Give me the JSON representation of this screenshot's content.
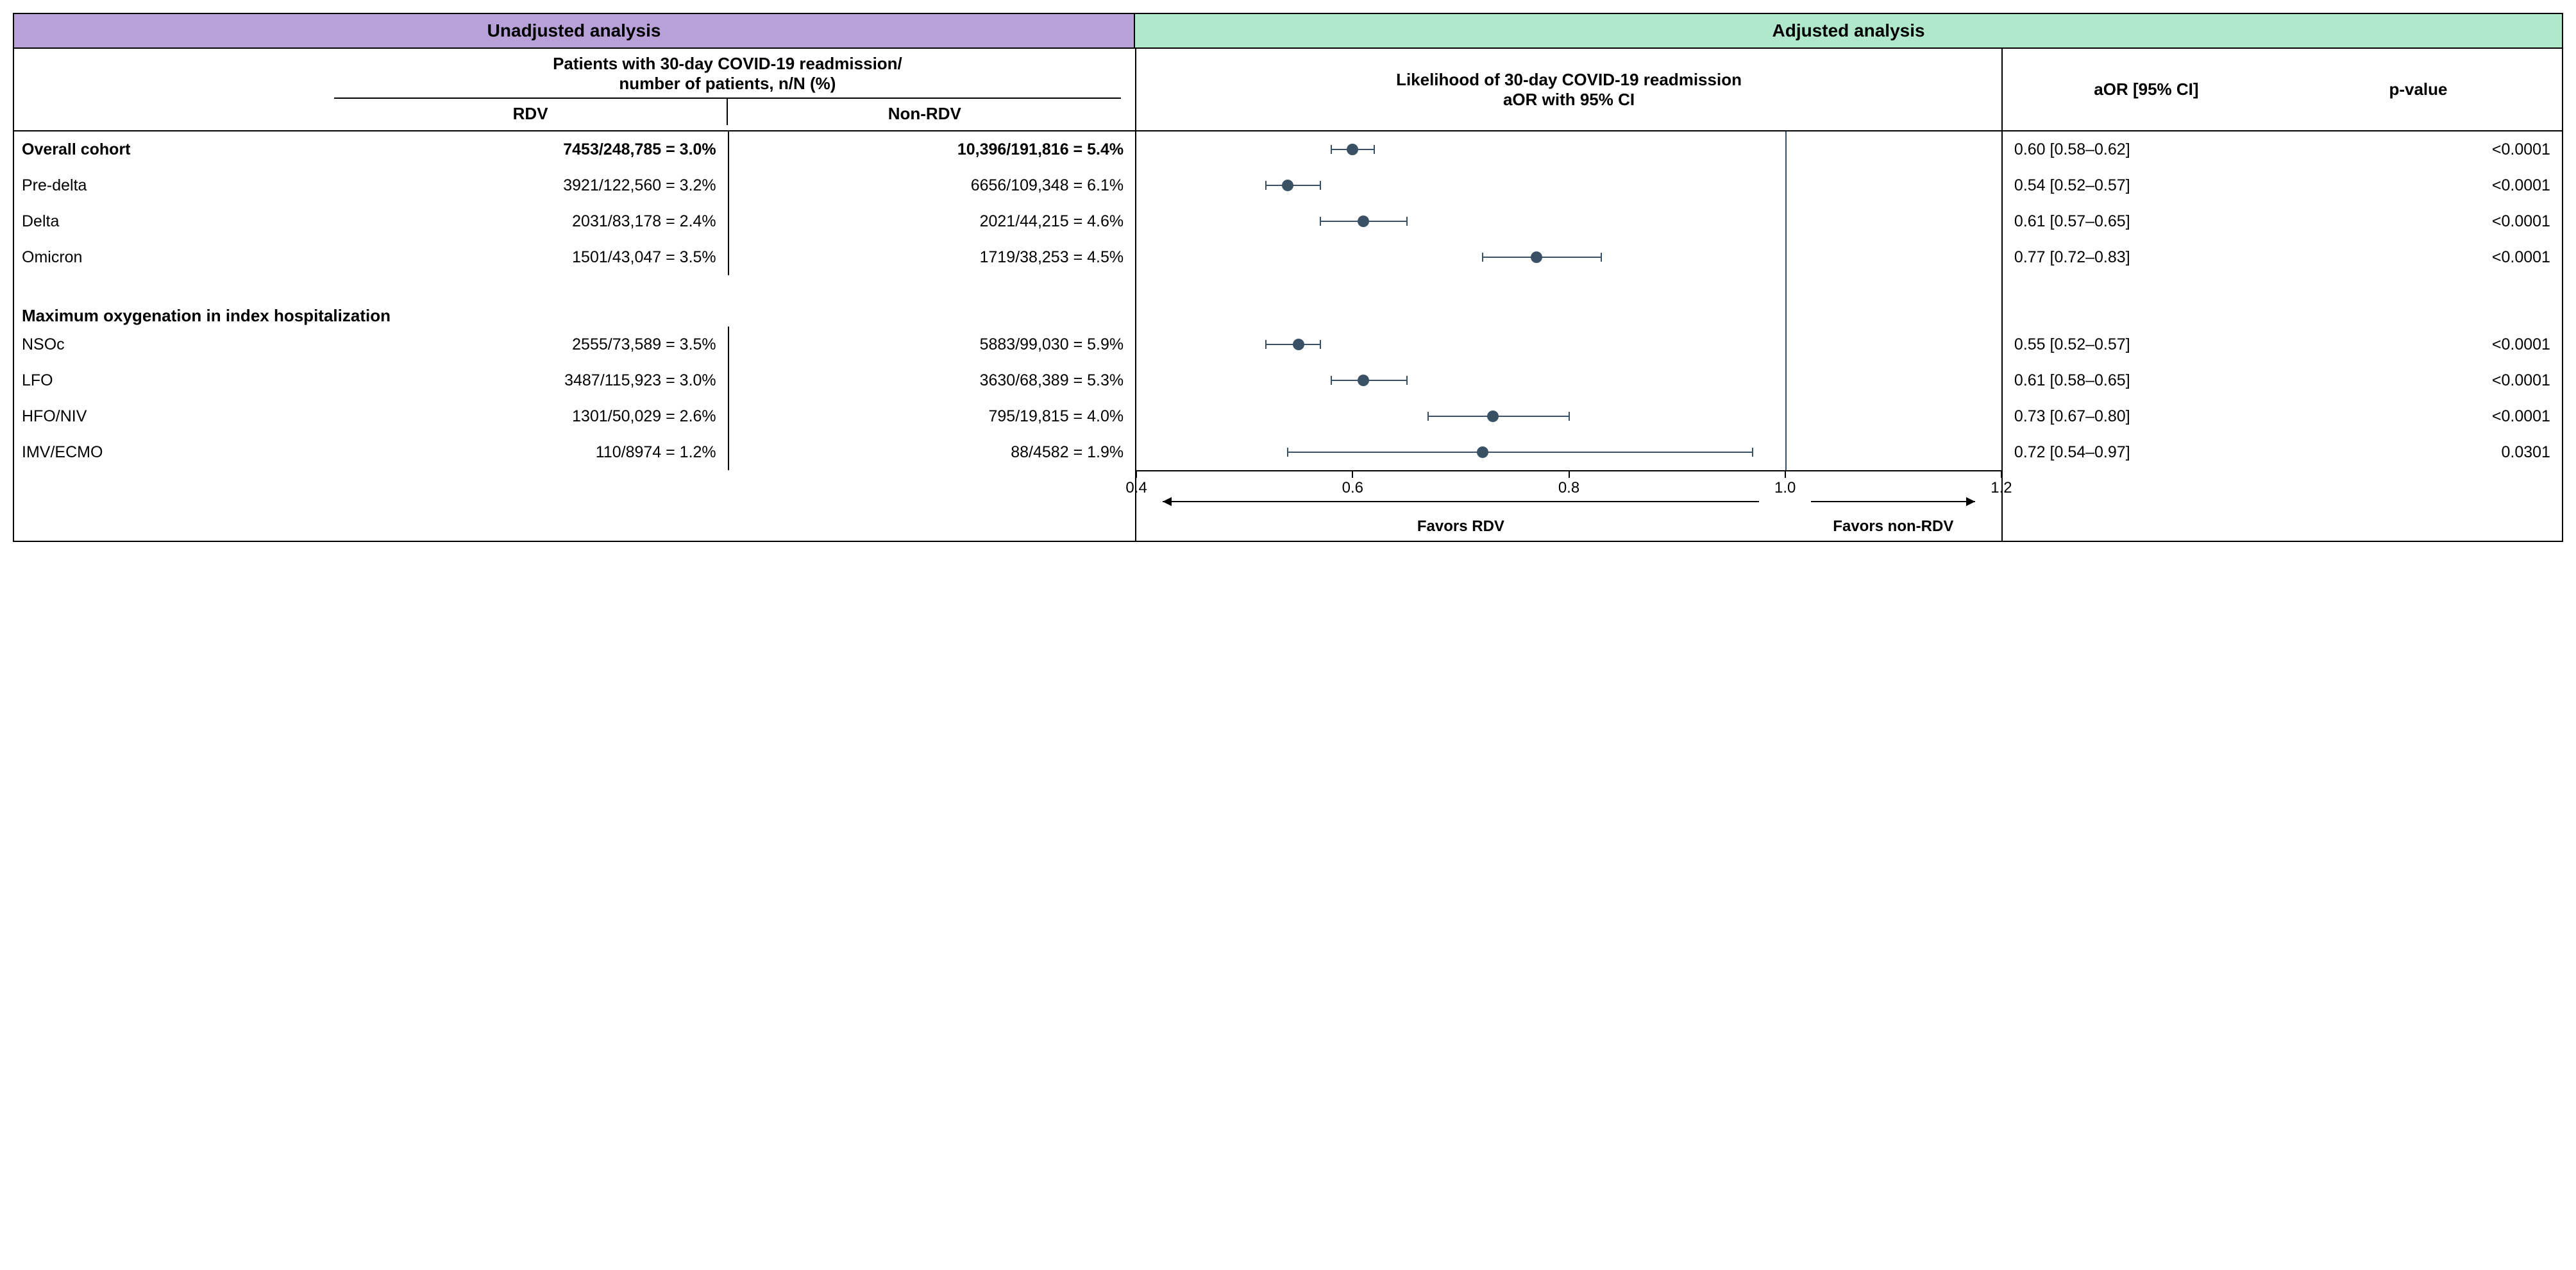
{
  "headers": {
    "unadjusted": "Unadjusted analysis",
    "adjusted": "Adjusted analysis",
    "patients_label": "Patients with 30-day COVID-19 readmission/\nnumber of patients, n/N (%)",
    "rdv": "RDV",
    "non_rdv": "Non-RDV",
    "forest_label": "Likelihood of 30-day COVID-19 readmission\naOR with 95% CI",
    "aor_label": "aOR [95% CI]",
    "p_label": "p-value"
  },
  "colors": {
    "header_left_bg": "#b8a0d8",
    "header_right_bg": "#b0e8cc",
    "point_color": "#3a5064",
    "border": "#000000"
  },
  "axis": {
    "min": 0.4,
    "max": 1.2,
    "ticks": [
      0.4,
      0.6,
      0.8,
      1.0,
      1.2
    ],
    "ref": 1.0,
    "favors_left": "Favors RDV",
    "favors_right": "Favors non-RDV"
  },
  "rows": [
    {
      "kind": "data",
      "bold": true,
      "label": "Overall cohort",
      "rdv": "7453/248,785 = 3.0%",
      "nonrdv": "10,396/191,816 = 5.4%",
      "aor": 0.6,
      "lo": 0.58,
      "hi": 0.62,
      "aor_text": "0.60 [0.58–0.62]",
      "p": "<0.0001"
    },
    {
      "kind": "data",
      "label": "Pre-delta",
      "rdv": "3921/122,560 = 3.2%",
      "nonrdv": "6656/109,348 = 6.1%",
      "aor": 0.54,
      "lo": 0.52,
      "hi": 0.57,
      "aor_text": "0.54 [0.52–0.57]",
      "p": "<0.0001"
    },
    {
      "kind": "data",
      "label": "Delta",
      "rdv": "2031/83,178 = 2.4%",
      "nonrdv": "2021/44,215 = 4.6%",
      "aor": 0.61,
      "lo": 0.57,
      "hi": 0.65,
      "aor_text": "0.61 [0.57–0.65]",
      "p": "<0.0001"
    },
    {
      "kind": "data",
      "label": "Omicron",
      "rdv": "1501/43,047 = 3.5%",
      "nonrdv": "1719/38,253 = 4.5%",
      "aor": 0.77,
      "lo": 0.72,
      "hi": 0.83,
      "aor_text": "0.77 [0.72–0.83]",
      "p": "<0.0001"
    },
    {
      "kind": "spacer"
    },
    {
      "kind": "section",
      "label": "Maximum oxygenation in index hospitalization"
    },
    {
      "kind": "data",
      "label": "NSOc",
      "rdv": "2555/73,589 = 3.5%",
      "nonrdv": "5883/99,030 = 5.9%",
      "aor": 0.55,
      "lo": 0.52,
      "hi": 0.57,
      "aor_text": "0.55 [0.52–0.57]",
      "p": "<0.0001"
    },
    {
      "kind": "data",
      "label": "LFO",
      "rdv": "3487/115,923 = 3.0%",
      "nonrdv": "3630/68,389 = 5.3%",
      "aor": 0.61,
      "lo": 0.58,
      "hi": 0.65,
      "aor_text": "0.61 [0.58–0.65]",
      "p": "<0.0001"
    },
    {
      "kind": "data",
      "label": "HFO/NIV",
      "rdv": "1301/50,029 = 2.6%",
      "nonrdv": "795/19,815 = 4.0%",
      "aor": 0.73,
      "lo": 0.67,
      "hi": 0.8,
      "aor_text": "0.73 [0.67–0.80]",
      "p": "<0.0001"
    },
    {
      "kind": "data",
      "label": "IMV/ECMO",
      "rdv": "110/8974 = 1.2%",
      "nonrdv": "88/4582 = 1.9%",
      "aor": 0.72,
      "lo": 0.54,
      "hi": 0.97,
      "aor_text": "0.72 [0.54–0.97]",
      "p": "0.0301"
    }
  ]
}
